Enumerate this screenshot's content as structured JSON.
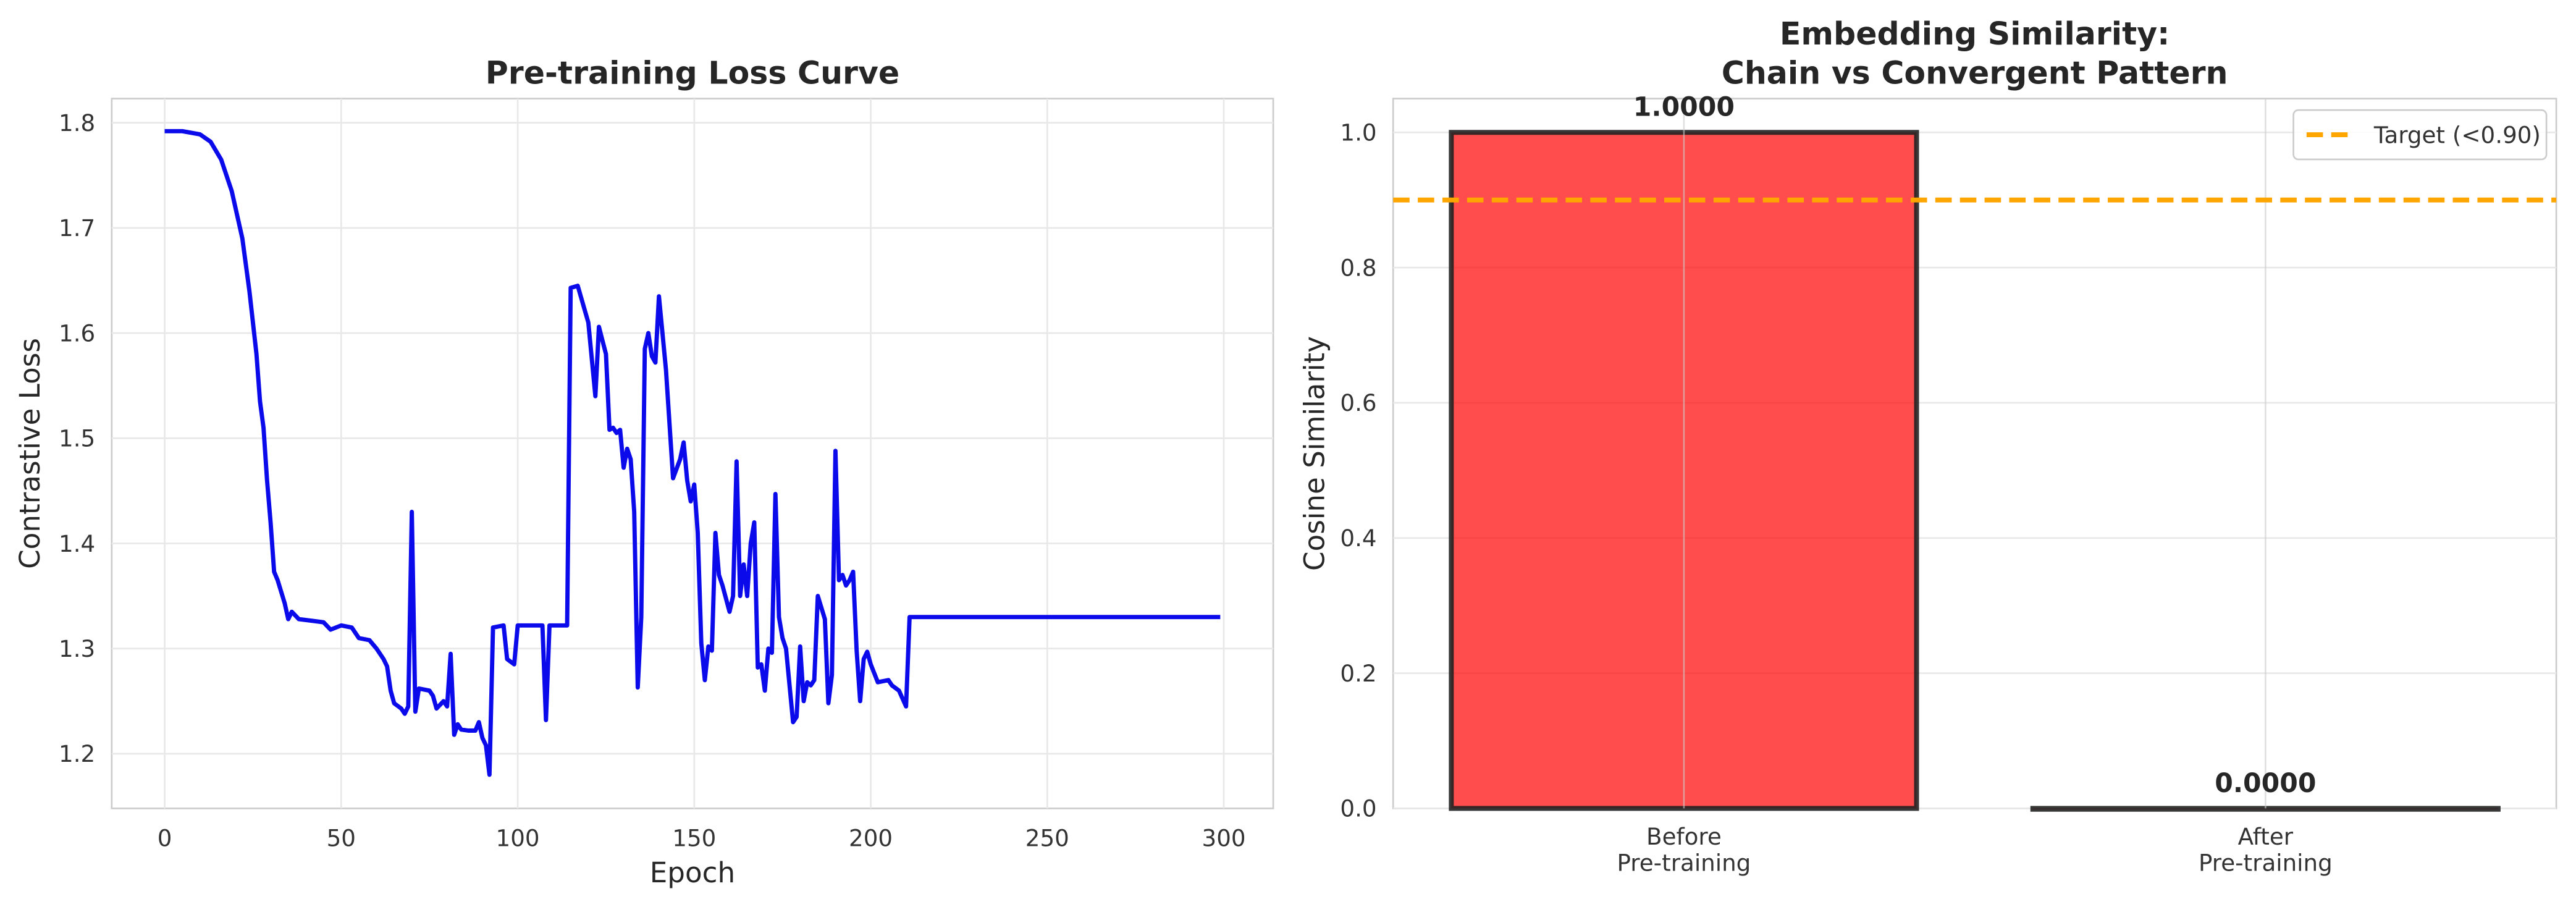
{
  "chart_data": [
    {
      "type": "line",
      "title": "Pre-training Loss Curve",
      "xlabel": "Epoch",
      "ylabel": "Contrastive Loss",
      "xlim": [
        -15,
        314
      ],
      "ylim": [
        1.148,
        1.823
      ],
      "xticks": [
        0,
        50,
        100,
        150,
        200,
        250,
        300
      ],
      "yticks": [
        1.2,
        1.3,
        1.4,
        1.5,
        1.6,
        1.7,
        1.8
      ],
      "grid": true,
      "color": "#0a0aeb",
      "x": [
        0,
        5,
        10,
        13,
        16,
        19,
        22,
        24,
        26,
        27,
        28,
        29,
        30,
        31,
        32,
        34,
        35,
        36,
        38,
        45,
        47,
        50,
        53,
        55,
        58,
        60,
        62,
        63,
        64,
        65,
        67,
        68,
        69,
        70,
        71,
        72,
        75,
        76,
        77,
        79,
        80,
        81,
        82,
        83,
        84,
        86,
        88,
        89,
        90,
        91,
        92,
        93,
        96,
        97,
        99,
        100,
        103,
        107,
        108,
        109,
        114,
        115,
        117,
        120,
        122,
        123,
        125,
        126,
        127,
        128,
        129,
        130,
        131,
        132,
        133,
        134,
        135,
        136,
        137,
        138,
        139,
        140,
        142,
        144,
        146,
        147,
        148,
        149,
        150,
        151,
        152,
        153,
        154,
        155,
        156,
        157,
        158,
        160,
        161,
        162,
        163,
        164,
        165,
        166,
        167,
        168,
        169,
        170,
        171,
        172,
        173,
        174,
        175,
        176,
        178,
        179,
        180,
        181,
        182,
        183,
        184,
        185,
        187,
        188,
        189,
        190,
        191,
        192,
        193,
        194,
        195,
        196,
        197,
        198,
        199,
        200,
        202,
        205,
        206,
        208,
        210,
        211,
        299
      ],
      "values": [
        1.792,
        1.792,
        1.789,
        1.782,
        1.765,
        1.735,
        1.69,
        1.64,
        1.58,
        1.535,
        1.51,
        1.46,
        1.42,
        1.373,
        1.365,
        1.343,
        1.328,
        1.335,
        1.328,
        1.325,
        1.318,
        1.322,
        1.32,
        1.31,
        1.308,
        1.3,
        1.29,
        1.283,
        1.26,
        1.248,
        1.243,
        1.238,
        1.245,
        1.43,
        1.24,
        1.262,
        1.26,
        1.255,
        1.243,
        1.25,
        1.245,
        1.295,
        1.218,
        1.228,
        1.223,
        1.222,
        1.222,
        1.23,
        1.215,
        1.208,
        1.18,
        1.32,
        1.322,
        1.29,
        1.285,
        1.322,
        1.322,
        1.322,
        1.232,
        1.322,
        1.322,
        1.643,
        1.645,
        1.61,
        1.54,
        1.606,
        1.58,
        1.508,
        1.51,
        1.505,
        1.508,
        1.472,
        1.49,
        1.48,
        1.43,
        1.263,
        1.33,
        1.585,
        1.6,
        1.578,
        1.572,
        1.635,
        1.565,
        1.462,
        1.48,
        1.496,
        1.46,
        1.44,
        1.456,
        1.41,
        1.305,
        1.27,
        1.302,
        1.298,
        1.41,
        1.37,
        1.36,
        1.335,
        1.35,
        1.478,
        1.35,
        1.38,
        1.35,
        1.4,
        1.42,
        1.282,
        1.285,
        1.26,
        1.3,
        1.296,
        1.447,
        1.33,
        1.31,
        1.3,
        1.23,
        1.235,
        1.302,
        1.25,
        1.268,
        1.265,
        1.27,
        1.35,
        1.328,
        1.248,
        1.275,
        1.488,
        1.365,
        1.37,
        1.36,
        1.365,
        1.373,
        1.298,
        1.25,
        1.29,
        1.297,
        1.285,
        1.268,
        1.27,
        1.265,
        1.26,
        1.245,
        1.33,
        1.33
      ]
    },
    {
      "type": "bar",
      "title": [
        "Embedding Similarity:",
        "Chain vs Convergent Pattern"
      ],
      "ylabel": "Cosine Similarity",
      "categories": [
        [
          "Before",
          "Pre-training"
        ],
        [
          "After",
          "Pre-training"
        ]
      ],
      "values": [
        1.0,
        0.0
      ],
      "value_labels": [
        "1.0000",
        "0.0000"
      ],
      "color": "#ff0000",
      "edgecolor": "#222222",
      "ylim": [
        0,
        1.05
      ],
      "yticks": [
        {
          "value": 0,
          "label": "0.0"
        },
        0.2,
        0.4,
        0.6,
        0.8,
        {
          "value": 1,
          "label": "1.0"
        }
      ],
      "grid": true,
      "hline": {
        "value": 0.9,
        "label": "Target (<0.90)",
        "color": "#ffa500"
      },
      "legend": "upper right"
    }
  ]
}
